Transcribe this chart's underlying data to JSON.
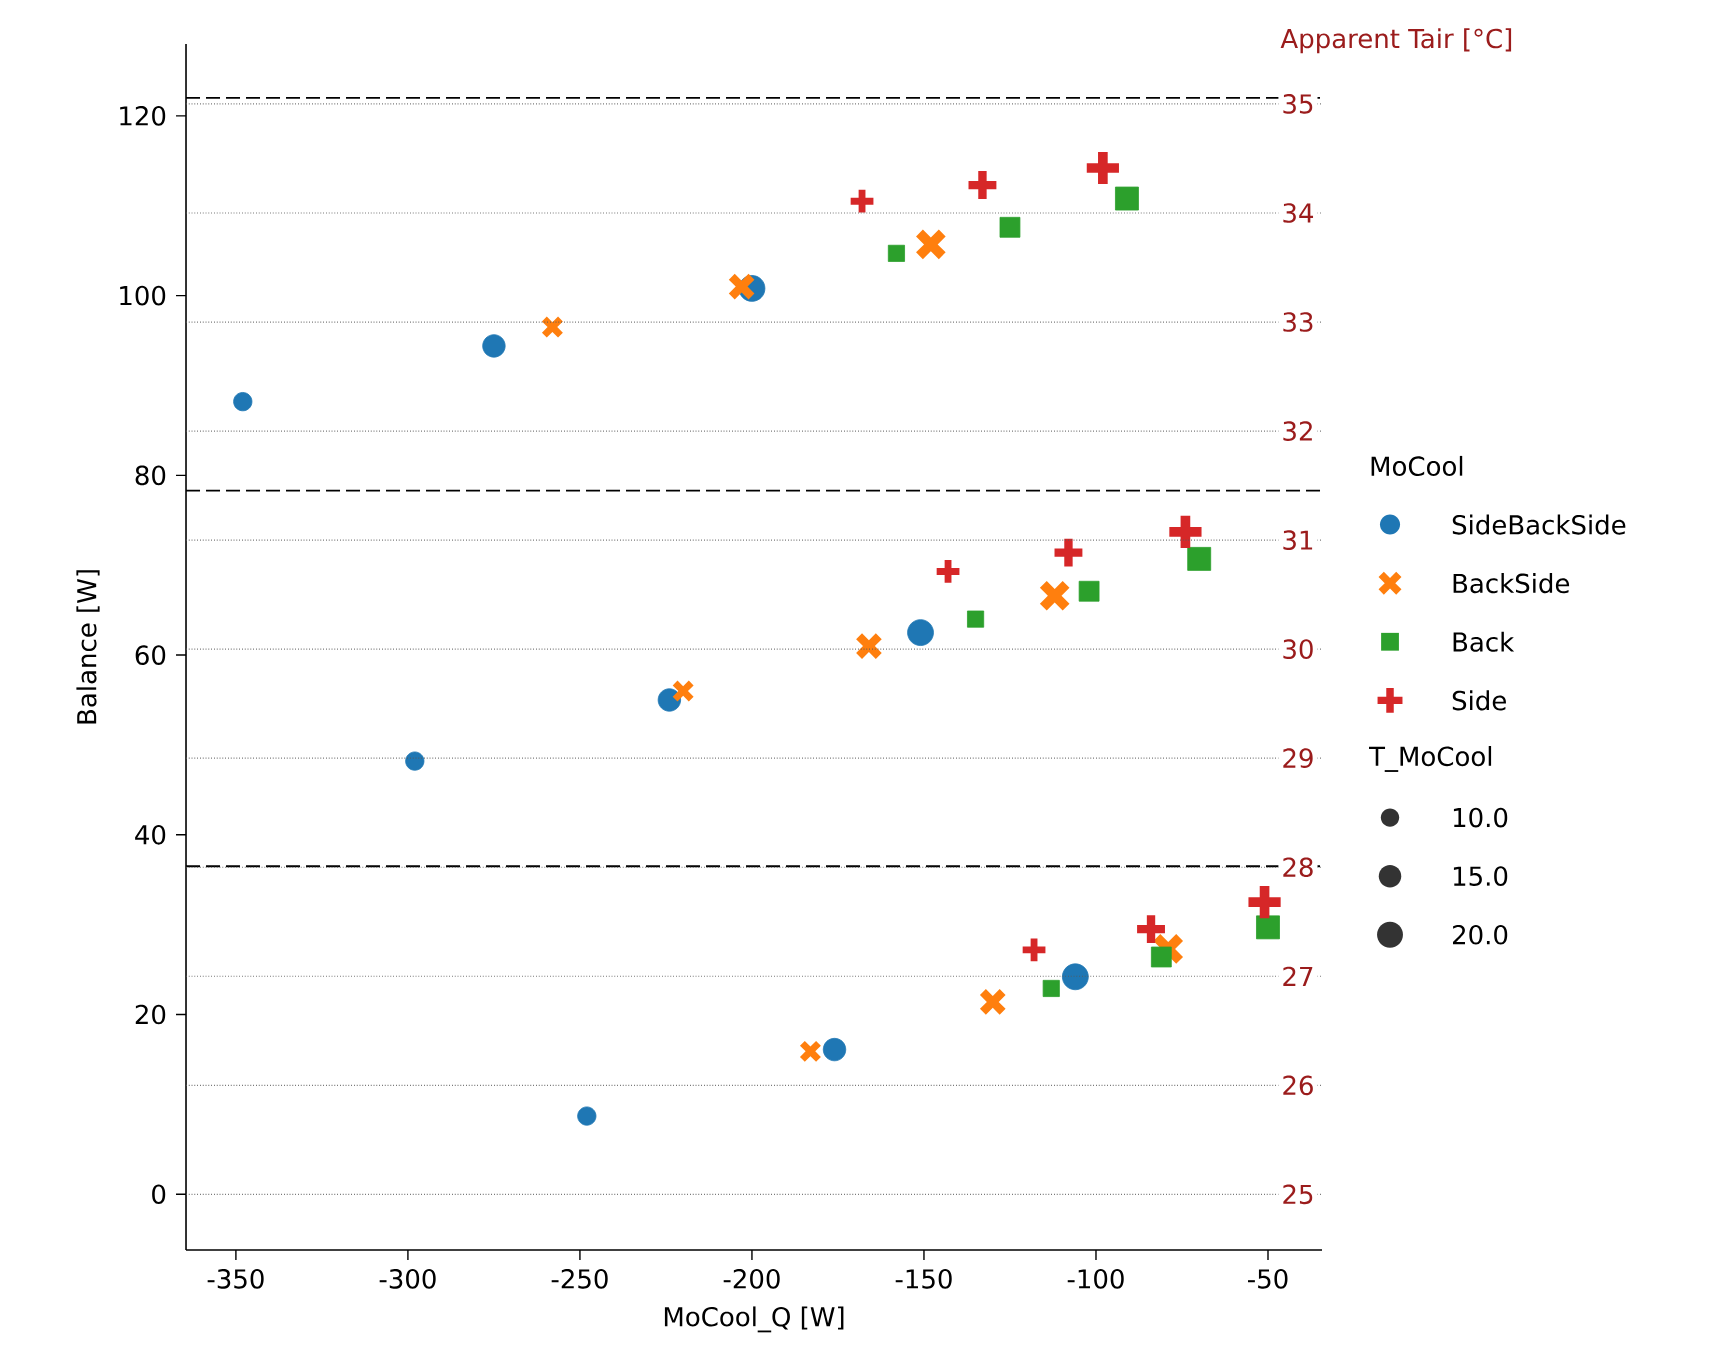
{
  "chart_data": {
    "type": "bubble",
    "xlabel": "MoCool_Q [W]",
    "grid": "y2",
    "ylabel": "Balance [W]",
    "y2label": "Apparent Tair [°C]",
    "legend_title": "MoCool",
    "legend": "right",
    "annotations": [
      "T_MoCool"
    ],
    "xlim": [
      -364.5,
      -34.3
    ],
    "xticks": [
      -350,
      -300,
      -250,
      -200,
      -150,
      -100,
      -50
    ],
    "ylim": [
      -6.2,
      128
    ],
    "yticks": [
      0,
      20,
      40,
      60,
      80,
      100,
      120
    ],
    "y2lim": [
      24.49,
      35.55
    ],
    "y2ticks": [
      25,
      26,
      27,
      28,
      29,
      30,
      31,
      32,
      33,
      34,
      35
    ],
    "size_legend": [
      {
        "value": 10,
        "label": "10.0"
      },
      {
        "value": 15,
        "label": "15.0"
      },
      {
        "value": 20,
        "label": "20.0"
      }
    ],
    "series": [
      {
        "name": "SideBackSide",
        "color": "#1f77b4",
        "marker": "circle",
        "x": [
          -348,
          -275,
          -200,
          -298,
          -224,
          -151,
          -248,
          -176,
          -106
        ],
        "values": [
          88.2,
          94.4,
          100.8,
          48.2,
          55.0,
          62.5,
          8.7,
          16.1,
          24.2
        ],
        "sizes": [
          10,
          15,
          20,
          10,
          15,
          20,
          10,
          15,
          20
        ]
      },
      {
        "name": "BackSide",
        "color": "#ff7f0e",
        "marker": "x",
        "x": [
          -258,
          -203,
          -148,
          -220,
          -166,
          -112,
          -183,
          -130,
          -79
        ],
        "values": [
          96.5,
          101.0,
          105.7,
          56.0,
          61.0,
          66.6,
          15.9,
          21.4,
          27.3
        ],
        "sizes": [
          10,
          15,
          20,
          10,
          15,
          20,
          10,
          15,
          20
        ]
      },
      {
        "name": "Back",
        "color": "#2ca02c",
        "marker": "square",
        "x": [
          -158,
          -125,
          -91,
          -135,
          -102,
          -70,
          -113,
          -81,
          -50
        ],
        "values": [
          104.7,
          107.6,
          110.8,
          64.0,
          67.1,
          70.7,
          22.9,
          26.4,
          29.7
        ],
        "sizes": [
          10,
          15,
          20,
          10,
          15,
          20,
          10,
          15,
          20
        ]
      },
      {
        "name": "Side",
        "color": "#d62728",
        "marker": "cross",
        "x": [
          -168,
          -133,
          -98,
          -143,
          -108,
          -74,
          -118,
          -84,
          -51
        ],
        "values": [
          110.5,
          112.3,
          114.2,
          69.3,
          71.4,
          73.7,
          27.2,
          29.5,
          32.5
        ],
        "sizes": [
          10,
          15,
          20,
          10,
          15,
          20,
          10,
          15,
          20
        ]
      }
    ],
    "ref_lines": [
      {
        "axis": "y",
        "value": 122,
        "line_style": "dashed",
        "color": "#000000"
      },
      {
        "axis": "y",
        "value": 78.3,
        "line_style": "dashed",
        "color": "#000000"
      },
      {
        "axis": "y",
        "value": 36.5,
        "line_style": "dashed",
        "color": "#000000"
      }
    ]
  }
}
